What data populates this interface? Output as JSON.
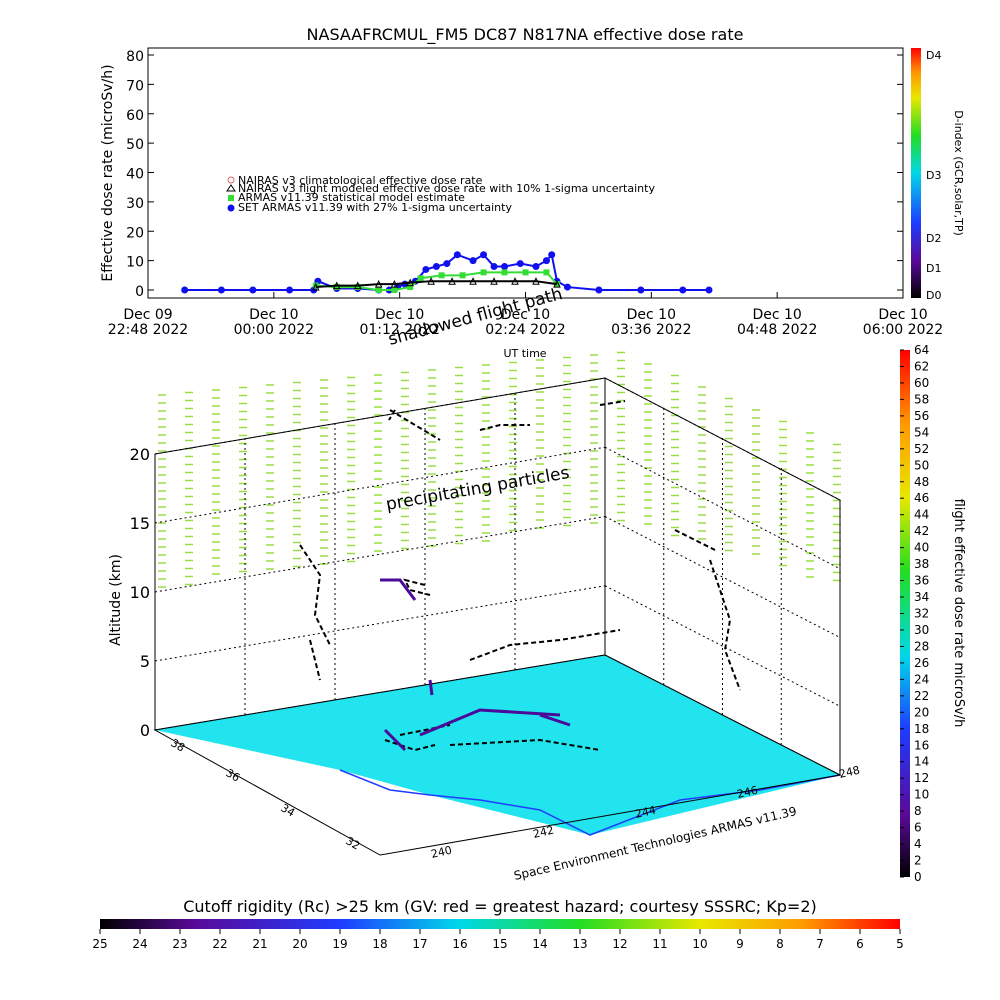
{
  "chart_data": [
    {
      "type": "scatter",
      "title": "NASAAFRCMUL_FM5 DC87 N817NA effective dose rate",
      "xlabel": "UT time",
      "ylabel": "Effective dose rate (microSv/h)",
      "ylim": [
        0,
        80
      ],
      "yticks": [
        "0",
        "10",
        "20",
        "30",
        "40",
        "50",
        "60",
        "70",
        "80"
      ],
      "xticks": [
        {
          "line1": "Dec 09",
          "line2": "22:48 2022"
        },
        {
          "line1": "Dec 10",
          "line2": "00:00 2022"
        },
        {
          "line1": "Dec 10",
          "line2": "01:12 2022"
        },
        {
          "line1": "Dec 10",
          "line2": "02:24 2022"
        },
        {
          "line1": "Dec 10",
          "line2": "03:36 2022"
        },
        {
          "line1": "Dec 10",
          "line2": "04:48 2022"
        },
        {
          "line1": "Dec 10",
          "line2": "06:00 2022"
        }
      ],
      "legend": [
        "NAIRAS v3 climatological effective dose rate",
        "NAIRAS v3 flight modeled effective dose rate with 10% 1-sigma uncertainty",
        "ARMAS v11.39 statistical model estimate",
        "SET ARMAS v11.39 with 27% 1-sigma uncertainty"
      ],
      "colors": {
        "nairas_clim": "#e06060",
        "nairas_flight": "#000000",
        "armas_model": "#33dd33",
        "set_armas": "#1010ee"
      },
      "series": [
        {
          "name": "SET ARMAS v11.39 with 27% 1-sigma uncertainty",
          "x_hours": [
            0.35,
            0.7,
            1.0,
            1.35,
            1.58,
            1.62,
            1.8,
            2.0,
            2.2,
            2.3,
            2.38,
            2.45,
            2.55,
            2.65,
            2.75,
            2.85,
            2.95,
            3.1,
            3.2,
            3.3,
            3.4,
            3.55,
            3.7,
            3.8,
            3.85,
            3.9,
            4.0,
            4.3,
            4.7,
            5.1,
            5.35
          ],
          "values": [
            0,
            0,
            0,
            0,
            0,
            3,
            0.5,
            0.5,
            0,
            0,
            1,
            2,
            3,
            7,
            8,
            9,
            12,
            10,
            12,
            8,
            8,
            9,
            8,
            10,
            12,
            3,
            1,
            0,
            0,
            0,
            0
          ]
        },
        {
          "name": "ARMAS v11.39 statistical model estimate",
          "x_hours": [
            1.6,
            1.8,
            2.0,
            2.2,
            2.35,
            2.5,
            2.6,
            2.8,
            3.0,
            3.2,
            3.4,
            3.6,
            3.8,
            3.9
          ],
          "values": [
            1.5,
            1,
            1,
            0,
            0,
            1,
            4,
            5,
            5,
            6,
            6,
            6,
            6,
            2
          ]
        },
        {
          "name": "NAIRAS v3 flight modeled effective dose rate with 10% 1-sigma uncertainty",
          "x_hours": [
            1.6,
            1.8,
            2.0,
            2.2,
            2.35,
            2.5,
            2.7,
            2.9,
            3.1,
            3.3,
            3.5,
            3.7,
            3.9
          ],
          "values": [
            1,
            1.5,
            1.5,
            2,
            2,
            2.5,
            3,
            3,
            3,
            3,
            3,
            3,
            2
          ]
        }
      ],
      "colorbar": {
        "label": "D-index (GCR,solar,TP)",
        "ticks": [
          "D0",
          "D1",
          "D2",
          "D3",
          "D4"
        ]
      }
    },
    {
      "type": "scatter",
      "title": "precipitating particles",
      "ylabel": "Altitude (km)",
      "zticks": [
        "0",
        "5",
        "10",
        "15",
        "20"
      ],
      "lat_ticks": [
        "32",
        "34",
        "36",
        "38"
      ],
      "lon_ticks": [
        "240",
        "242",
        "244",
        "246",
        "248"
      ],
      "annotations": [
        "shadowed flight path",
        "precipitating particles",
        "Space Environment Technologies ARMAS v11.39"
      ],
      "colorbar": {
        "label": "flight effective dose rate microSv/h",
        "ticks": [
          "0",
          "2",
          "4",
          "6",
          "8",
          "10",
          "12",
          "14",
          "16",
          "18",
          "20",
          "22",
          "24",
          "26",
          "28",
          "30",
          "32",
          "34",
          "36",
          "38",
          "40",
          "42",
          "44",
          "46",
          "48",
          "50",
          "52",
          "54",
          "56",
          "58",
          "60",
          "62",
          "64"
        ]
      },
      "map_color": "#22e4ee",
      "particle_color": "#99dd44"
    },
    {
      "type": "heatmap",
      "title": "Cutoff rigidity (Rc) >25 km (GV: red = greatest hazard; courtesy SSSRC; Kp=2)",
      "ticks": [
        "25",
        "24",
        "23",
        "22",
        "21",
        "20",
        "19",
        "18",
        "17",
        "16",
        "15",
        "14",
        "13",
        "12",
        "11",
        "10",
        "9",
        "8",
        "7",
        "6",
        "5"
      ]
    }
  ]
}
